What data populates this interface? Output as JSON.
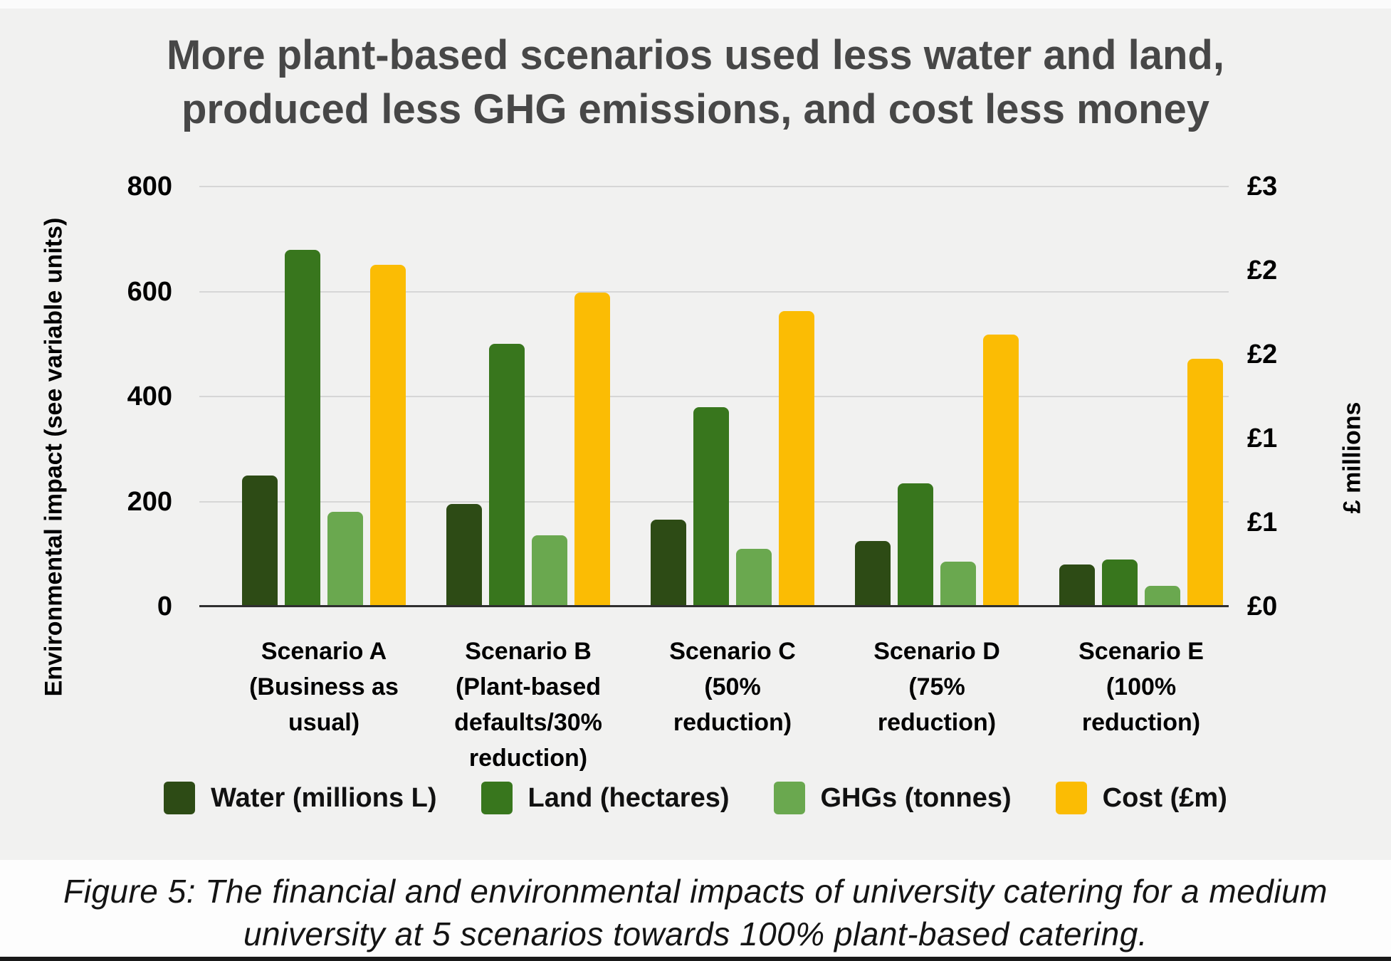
{
  "chart_data": {
    "type": "bar",
    "title_lines": [
      "More plant-based scenarios used less water and land,",
      "produced less GHG emissions, and cost less money"
    ],
    "categories": [
      {
        "id": "scenario-a",
        "lines": [
          "Scenario A",
          "(Business as",
          "usual)"
        ]
      },
      {
        "id": "scenario-b",
        "lines": [
          "Scenario B",
          "(Plant-based",
          "defaults/30%",
          "reduction)"
        ]
      },
      {
        "id": "scenario-c",
        "lines": [
          "Scenario C",
          "(50%",
          "reduction)"
        ]
      },
      {
        "id": "scenario-d",
        "lines": [
          "Scenario D",
          "(75%",
          "reduction)"
        ]
      },
      {
        "id": "scenario-e",
        "lines": [
          "Scenario E",
          "(100%",
          "reduction)"
        ]
      }
    ],
    "series": [
      {
        "id": "water",
        "name": "Water (millions L)",
        "color": "#2d4b15",
        "axis": "left",
        "values": [
          250,
          195,
          165,
          125,
          80
        ]
      },
      {
        "id": "land",
        "name": "Land (hectares)",
        "color": "#38761d",
        "axis": "left",
        "values": [
          680,
          500,
          380,
          235,
          90
        ]
      },
      {
        "id": "ghgs",
        "name": "GHGs (tonnes)",
        "color": "#6aa84f",
        "axis": "left",
        "values": [
          180,
          135,
          110,
          85,
          40
        ]
      },
      {
        "id": "cost",
        "name": "Cost (£m)",
        "color": "#fbbc04",
        "axis": "right",
        "values": [
          2.44,
          2.24,
          2.11,
          1.94,
          1.77
        ]
      }
    ],
    "left_axis": {
      "label": "Environmental impact (see variable units)",
      "min": 0,
      "max": 800,
      "ticks": [
        "800",
        "600",
        "400",
        "200",
        "0"
      ]
    },
    "right_axis": {
      "label": "£ millions",
      "min": 0,
      "max": 3,
      "ticks": [
        "£3",
        "£2",
        "£2",
        "£1",
        "£1",
        "£0"
      ]
    },
    "grid": true,
    "legend_position": "bottom"
  },
  "caption": {
    "lines": [
      "Figure 5: The financial and environmental impacts of university catering for a medium",
      "university at 5 scenarios towards 100% plant-based catering."
    ]
  },
  "colors": {
    "chart_background": "#f1f1f0",
    "caption_background": "#fdfdfd",
    "title_text": "#474747",
    "axis_text": "#000000",
    "gridline": "#d6d6d6",
    "axis_line": "#2f2f2f",
    "bottom_bar": "#191919",
    "water_bar": "#2d4b15",
    "land_bar": "#38761d",
    "ghgs_bar": "#6aa84f",
    "cost_bar": "#fbbc04"
  }
}
